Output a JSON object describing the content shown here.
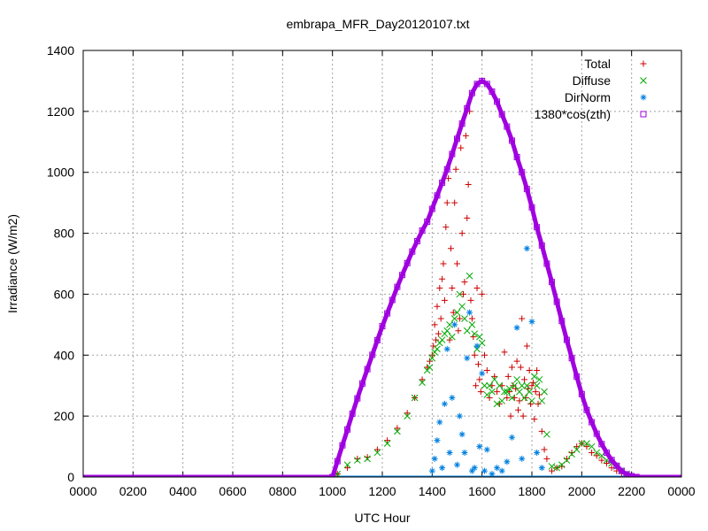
{
  "chart_data": {
    "type": "scatter",
    "title": "embrapa_MFR_Day20120107.txt",
    "xlabel": "UTC Hour",
    "ylabel": "Irradiance (W/m2)",
    "xlim": [
      0,
      24
    ],
    "ylim": [
      0,
      1400
    ],
    "x_ticks": [
      {
        "value": 0,
        "label": "0000"
      },
      {
        "value": 2,
        "label": "0200"
      },
      {
        "value": 4,
        "label": "0400"
      },
      {
        "value": 6,
        "label": "0600"
      },
      {
        "value": 8,
        "label": "0800"
      },
      {
        "value": 10,
        "label": "1000"
      },
      {
        "value": 12,
        "label": "1200"
      },
      {
        "value": 14,
        "label": "1400"
      },
      {
        "value": 16,
        "label": "1600"
      },
      {
        "value": 18,
        "label": "1800"
      },
      {
        "value": 20,
        "label": "2000"
      },
      {
        "value": 22,
        "label": "2200"
      },
      {
        "value": 24,
        "label": "0000"
      }
    ],
    "y_ticks": [
      0,
      200,
      400,
      600,
      800,
      1000,
      1200,
      1400
    ],
    "grid": true,
    "legend_position": "top-right",
    "series": [
      {
        "name": "Total",
        "marker": "plus",
        "color": "#cc0000",
        "x": [
          10.2,
          10.6,
          11,
          11.4,
          11.8,
          12.2,
          12.6,
          13,
          13.3,
          13.6,
          13.8,
          13.9,
          14,
          14.05,
          14.1,
          14.15,
          14.2,
          14.25,
          14.3,
          14.35,
          14.4,
          14.45,
          14.5,
          14.55,
          14.6,
          14.65,
          14.7,
          14.75,
          14.8,
          14.85,
          14.9,
          14.95,
          15,
          15.05,
          15.1,
          15.15,
          15.2,
          15.25,
          15.3,
          15.35,
          15.4,
          15.45,
          15.5,
          15.55,
          15.6,
          15.65,
          15.7,
          15.75,
          15.8,
          15.85,
          15.9,
          15.95,
          16,
          16.1,
          16.2,
          16.3,
          16.4,
          16.5,
          16.6,
          16.7,
          16.8,
          16.9,
          17,
          17.05,
          17.1,
          17.15,
          17.2,
          17.25,
          17.3,
          17.35,
          17.4,
          17.45,
          17.5,
          17.55,
          17.6,
          17.65,
          17.7,
          17.75,
          17.8,
          17.85,
          17.9,
          17.95,
          18,
          18.05,
          18.1,
          18.15,
          18.2,
          18.25,
          18.3,
          18.4,
          18.5,
          18.6,
          18.8,
          19,
          19.2,
          19.4,
          19.6,
          19.8,
          20,
          20.2,
          20.4,
          20.6,
          20.8,
          21,
          21.2,
          21.4,
          21.6,
          21.8,
          22
        ],
        "y": [
          10,
          30,
          60,
          65,
          90,
          120,
          160,
          210,
          260,
          320,
          360,
          380,
          400,
          430,
          500,
          450,
          560,
          470,
          620,
          520,
          650,
          700,
          580,
          820,
          900,
          980,
          450,
          750,
          620,
          540,
          900,
          1010,
          700,
          480,
          520,
          1080,
          800,
          600,
          640,
          1120,
          850,
          960,
          1200,
          580,
          520,
          460,
          400,
          300,
          620,
          370,
          320,
          280,
          600,
          400,
          350,
          260,
          300,
          330,
          280,
          240,
          300,
          410,
          260,
          330,
          280,
          200,
          360,
          300,
          260,
          290,
          380,
          220,
          250,
          360,
          520,
          200,
          320,
          260,
          430,
          290,
          350,
          240,
          300,
          310,
          190,
          280,
          350,
          240,
          270,
          150,
          90,
          60,
          20,
          30,
          35,
          60,
          80,
          100,
          110,
          100,
          80,
          70,
          55,
          45,
          30,
          20,
          12,
          5,
          0
        ]
      },
      {
        "name": "Diffuse",
        "marker": "cross",
        "color": "#00aa00",
        "x": [
          10.2,
          10.6,
          11,
          11.4,
          11.8,
          12.2,
          12.6,
          13,
          13.3,
          13.6,
          13.8,
          13.9,
          14,
          14.1,
          14.2,
          14.3,
          14.4,
          14.5,
          14.6,
          14.7,
          14.8,
          14.9,
          15,
          15.1,
          15.2,
          15.3,
          15.4,
          15.5,
          15.6,
          15.7,
          15.8,
          15.9,
          16,
          16.1,
          16.2,
          16.3,
          16.4,
          16.5,
          16.6,
          16.7,
          16.8,
          16.9,
          17,
          17.1,
          17.2,
          17.3,
          17.4,
          17.5,
          17.6,
          17.7,
          17.8,
          17.9,
          18,
          18.1,
          18.2,
          18.3,
          18.4,
          18.5,
          18.6,
          18.8,
          19,
          19.2,
          19.4,
          19.6,
          19.8,
          20,
          20.2,
          20.4,
          20.6,
          20.8,
          21,
          21.2,
          21.4,
          21.6,
          21.8,
          22
        ],
        "y": [
          10,
          40,
          55,
          60,
          80,
          110,
          150,
          200,
          260,
          310,
          350,
          360,
          390,
          410,
          420,
          440,
          450,
          470,
          480,
          500,
          460,
          520,
          540,
          600,
          560,
          520,
          480,
          660,
          500,
          470,
          420,
          460,
          440,
          300,
          270,
          300,
          280,
          320,
          240,
          300,
          250,
          280,
          280,
          290,
          260,
          300,
          320,
          280,
          300,
          260,
          300,
          280,
          250,
          330,
          300,
          320,
          250,
          280,
          140,
          35,
          30,
          40,
          55,
          75,
          90,
          110,
          110,
          100,
          80,
          70,
          55,
          45,
          35,
          20,
          10,
          0
        ]
      },
      {
        "name": "DirNorm",
        "marker": "star",
        "color": "#0080e0",
        "x": [
          14,
          14.1,
          14.2,
          14.3,
          14.4,
          14.5,
          14.6,
          14.7,
          14.8,
          14.9,
          15,
          15.1,
          15.2,
          15.3,
          15.4,
          15.5,
          15.6,
          15.7,
          15.8,
          15.9,
          16,
          16.1,
          16.2,
          16.4,
          16.6,
          16.8,
          17,
          17.2,
          17.4,
          17.6,
          17.8,
          18,
          18.2,
          18.4
        ],
        "y": [
          20,
          60,
          120,
          180,
          30,
          240,
          420,
          80,
          260,
          500,
          40,
          200,
          140,
          80,
          390,
          540,
          20,
          30,
          430,
          100,
          340,
          20,
          90,
          10,
          30,
          20,
          50,
          130,
          490,
          60,
          750,
          510,
          80,
          30
        ]
      },
      {
        "name": "1380*cos(zth)",
        "marker": "square",
        "color": "#a000e0",
        "x": [
          10.0,
          10.2,
          10.4,
          10.6,
          10.8,
          11.0,
          11.2,
          11.4,
          11.6,
          11.8,
          12.0,
          12.2,
          12.4,
          12.6,
          12.8,
          13.0,
          13.2,
          13.4,
          13.6,
          13.8,
          14.0,
          14.2,
          14.4,
          14.6,
          14.8,
          15.0,
          15.2,
          15.4,
          15.6,
          15.8,
          16.0,
          16.2,
          16.4,
          16.6,
          16.8,
          17.0,
          17.2,
          17.4,
          17.6,
          17.8,
          18.0,
          18.2,
          18.4,
          18.6,
          18.8,
          19.0,
          19.2,
          19.4,
          19.6,
          19.8,
          20.0,
          20.2,
          20.4,
          20.6,
          20.8,
          21.0,
          21.2,
          21.4,
          21.6,
          21.8,
          22.0,
          22.2
        ],
        "y": [
          0,
          52,
          104,
          156,
          208,
          258,
          307,
          354,
          401,
          449,
          495,
          537,
          581,
          624,
          663,
          702,
          740,
          774,
          809,
          838,
          880,
          924,
          966,
          1010,
          1060,
          1110,
          1160,
          1210,
          1260,
          1290,
          1300,
          1290,
          1265,
          1232,
          1190,
          1150,
          1104,
          1050,
          1000,
          945,
          885,
          820,
          760,
          700,
          640,
          575,
          512,
          450,
          390,
          330,
          272,
          220,
          180,
          142,
          108,
          80,
          56,
          37,
          20,
          9,
          3,
          0
        ]
      }
    ]
  }
}
